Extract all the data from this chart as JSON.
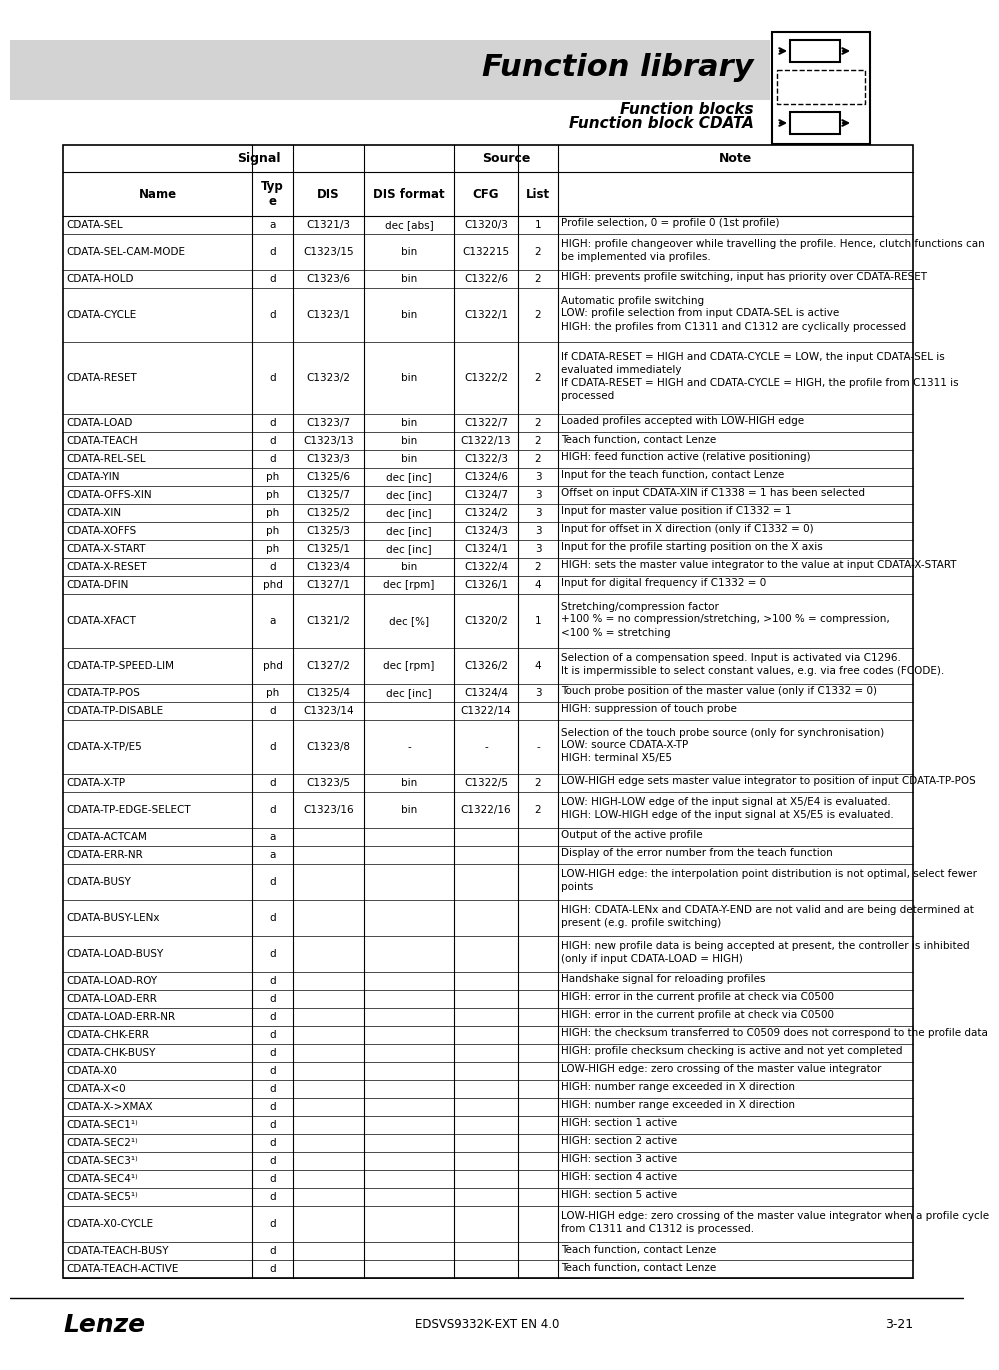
{
  "title": "Function library",
  "subtitle1": "Function blocks",
  "subtitle2": "Function block CDATA",
  "page_bg": "#ffffff",
  "header_band_color": "#d3d3d3",
  "footer_center": "EDSVS9332K-EXT EN 4.0",
  "footer_right": "3-21",
  "rows": [
    [
      "CDATA-SEL",
      "a",
      "C1321/3",
      "dec [abs]",
      "C1320/3",
      "1",
      "Profile selection, 0 = profile 0 (1st profile)"
    ],
    [
      "CDATA-SEL-CAM-MODE",
      "d",
      "C1323/15",
      "bin",
      "C132215",
      "2",
      "HIGH: profile changeover while travelling the profile. Hence, clutch functions can\nbe implemented via profiles."
    ],
    [
      "CDATA-HOLD",
      "d",
      "C1323/6",
      "bin",
      "C1322/6",
      "2",
      "HIGH: prevents profile switching, input has priority over CDATA-RESET"
    ],
    [
      "CDATA-CYCLE",
      "d",
      "C1323/1",
      "bin",
      "C1322/1",
      "2",
      "Automatic profile switching\nLOW: profile selection from input CDATA-SEL is active\nHIGH: the profiles from C1311 and C1312 are cyclically processed"
    ],
    [
      "CDATA-RESET",
      "d",
      "C1323/2",
      "bin",
      "C1322/2",
      "2",
      "If CDATA-RESET = HIGH and CDATA-CYCLE = LOW, the input CDATA-SEL is\nevaluated immediately\nIf CDATA-RESET = HIGH and CDATA-CYCLE = HIGH, the profile from C1311 is\nprocessed"
    ],
    [
      "CDATA-LOAD",
      "d",
      "C1323/7",
      "bin",
      "C1322/7",
      "2",
      "Loaded profiles accepted with LOW-HIGH edge"
    ],
    [
      "CDATA-TEACH",
      "d",
      "C1323/13",
      "bin",
      "C1322/13",
      "2",
      "Teach function, contact Lenze"
    ],
    [
      "CDATA-REL-SEL",
      "d",
      "C1323/3",
      "bin",
      "C1322/3",
      "2",
      "HIGH: feed function active (relative positioning)"
    ],
    [
      "CDATA-YIN",
      "ph",
      "C1325/6",
      "dec [inc]",
      "C1324/6",
      "3",
      "Input for the teach function, contact Lenze"
    ],
    [
      "CDATA-OFFS-XIN",
      "ph",
      "C1325/7",
      "dec [inc]",
      "C1324/7",
      "3",
      "Offset on input CDATA-XIN if C1338 = 1 has been selected"
    ],
    [
      "CDATA-XIN",
      "ph",
      "C1325/2",
      "dec [inc]",
      "C1324/2",
      "3",
      "Input for master value position if C1332 = 1"
    ],
    [
      "CDATA-XOFFS",
      "ph",
      "C1325/3",
      "dec [inc]",
      "C1324/3",
      "3",
      "Input for offset in X direction (only if C1332 = 0)"
    ],
    [
      "CDATA-X-START",
      "ph",
      "C1325/1",
      "dec [inc]",
      "C1324/1",
      "3",
      "Input for the profile starting position on the X axis"
    ],
    [
      "CDATA-X-RESET",
      "d",
      "C1323/4",
      "bin",
      "C1322/4",
      "2",
      "HIGH: sets the master value integrator to the value at input CDATA-X-START"
    ],
    [
      "CDATA-DFIN",
      "phd",
      "C1327/1",
      "dec [rpm]",
      "C1326/1",
      "4",
      "Input for digital frequency if C1332 = 0"
    ],
    [
      "CDATA-XFACT",
      "a",
      "C1321/2",
      "dec [%]",
      "C1320/2",
      "1",
      "Stretching/compression factor\n+100 % = no compression/stretching, >100 % = compression,\n<100 % = stretching"
    ],
    [
      "CDATA-TP-SPEED-LIM",
      "phd",
      "C1327/2",
      "dec [rpm]",
      "C1326/2",
      "4",
      "Selection of a compensation speed. Input is activated via C1296.\nIt is impermissible to select constant values, e.g. via free codes (FCODE)."
    ],
    [
      "CDATA-TP-POS",
      "ph",
      "C1325/4",
      "dec [inc]",
      "C1324/4",
      "3",
      "Touch probe position of the master value (only if C1332 = 0)"
    ],
    [
      "CDATA-TP-DISABLE",
      "d",
      "C1323/14",
      "",
      "C1322/14",
      "",
      "HIGH: suppression of touch probe"
    ],
    [
      "CDATA-X-TP/E5",
      "d",
      "C1323/8",
      "-",
      "-",
      "-",
      "Selection of the touch probe source (only for synchronisation)\nLOW: source CDATA-X-TP\nHIGH: terminal X5/E5"
    ],
    [
      "CDATA-X-TP",
      "d",
      "C1323/5",
      "bin",
      "C1322/5",
      "2",
      "LOW-HIGH edge sets master value integrator to position of input CDATA-TP-POS"
    ],
    [
      "CDATA-TP-EDGE-SELECT",
      "d",
      "C1323/16",
      "bin",
      "C1322/16",
      "2",
      "LOW: HIGH-LOW edge of the input signal at X5/E4 is evaluated.\nHIGH: LOW-HIGH edge of the input signal at X5/E5 is evaluated."
    ],
    [
      "CDATA-ACTCAM",
      "a",
      "",
      "",
      "",
      "",
      "Output of the active profile"
    ],
    [
      "CDATA-ERR-NR",
      "a",
      "",
      "",
      "",
      "",
      "Display of the error number from the teach function"
    ],
    [
      "CDATA-BUSY",
      "d",
      "",
      "",
      "",
      "",
      "LOW-HIGH edge: the interpolation point distribution is not optimal, select fewer\npoints"
    ],
    [
      "CDATA-BUSY-LENx",
      "d",
      "",
      "",
      "",
      "",
      "HIGH: CDATA-LENx and CDATA-Y-END are not valid and are being determined at\npresent (e.g. profile switching)"
    ],
    [
      "CDATA-LOAD-BUSY",
      "d",
      "",
      "",
      "",
      "",
      "HIGH: new profile data is being accepted at present, the controller is inhibited\n(only if input CDATA-LOAD = HIGH)"
    ],
    [
      "CDATA-LOAD-ROY",
      "d",
      "",
      "",
      "",
      "",
      "Handshake signal for reloading profiles"
    ],
    [
      "CDATA-LOAD-ERR",
      "d",
      "",
      "",
      "",
      "",
      "HIGH: error in the current profile at check via C0500"
    ],
    [
      "CDATA-LOAD-ERR-NR",
      "d",
      "",
      "",
      "",
      "",
      "HIGH: error in the current profile at check via C0500"
    ],
    [
      "CDATA-CHK-ERR",
      "d",
      "",
      "",
      "",
      "",
      "HIGH: the checksum transferred to C0509 does not correspond to the profile data"
    ],
    [
      "CDATA-CHK-BUSY",
      "d",
      "",
      "",
      "",
      "",
      "HIGH: profile checksum checking is active and not yet completed"
    ],
    [
      "CDATA-X0",
      "d",
      "",
      "",
      "",
      "",
      "LOW-HIGH edge: zero crossing of the master value integrator"
    ],
    [
      "CDATA-X<0",
      "d",
      "",
      "",
      "",
      "",
      "HIGH: number range exceeded in X direction"
    ],
    [
      "CDATA-X->XMAX",
      "d",
      "",
      "",
      "",
      "",
      "HIGH: number range exceeded in X direction"
    ],
    [
      "CDATA-SEC1¹⁾",
      "d",
      "",
      "",
      "",
      "",
      "HIGH: section 1 active"
    ],
    [
      "CDATA-SEC2¹⁾",
      "d",
      "",
      "",
      "",
      "",
      "HIGH: section 2 active"
    ],
    [
      "CDATA-SEC3¹⁾",
      "d",
      "",
      "",
      "",
      "",
      "HIGH: section 3 active"
    ],
    [
      "CDATA-SEC4¹⁾",
      "d",
      "",
      "",
      "",
      "",
      "HIGH: section 4 active"
    ],
    [
      "CDATA-SEC5¹⁾",
      "d",
      "",
      "",
      "",
      "",
      "HIGH: section 5 active"
    ],
    [
      "CDATA-X0-CYCLE",
      "d",
      "",
      "",
      "",
      "",
      "LOW-HIGH edge: zero crossing of the master value integrator when a profile cycle\nfrom C1311 and C1312 is processed."
    ],
    [
      "CDATA-TEACH-BUSY",
      "d",
      "",
      "",
      "",
      "",
      "Teach function, contact Lenze"
    ],
    [
      "CDATA-TEACH-ACTIVE",
      "d",
      "",
      "",
      "",
      "",
      "Teach function, contact Lenze"
    ]
  ]
}
